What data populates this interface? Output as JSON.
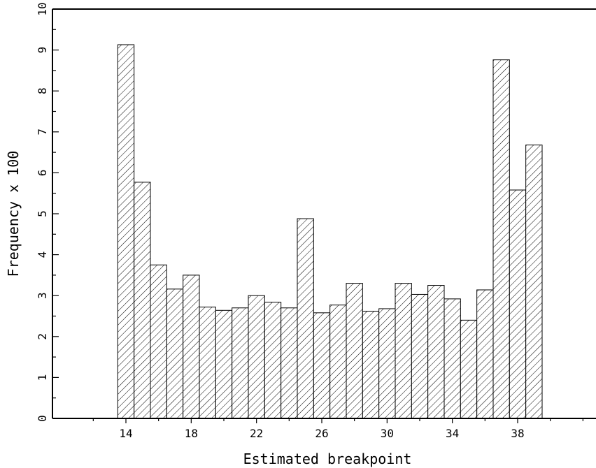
{
  "chart_data": {
    "type": "bar",
    "title": "",
    "xlabel": "Estimated breakpoint",
    "ylabel": "Frequency x 100",
    "x": [
      14,
      15,
      16,
      17,
      18,
      19,
      20,
      21,
      22,
      23,
      24,
      25,
      26,
      27,
      28,
      29,
      30,
      31,
      32,
      33,
      34,
      35,
      36,
      37,
      38,
      39
    ],
    "values": [
      9.13,
      5.77,
      3.75,
      3.16,
      3.5,
      2.72,
      2.64,
      2.7,
      3.0,
      2.84,
      2.7,
      4.88,
      2.58,
      2.77,
      3.3,
      2.62,
      2.68,
      3.3,
      3.03,
      3.25,
      2.92,
      2.4,
      3.14,
      8.76,
      5.58,
      6.68
    ],
    "xticks": [
      14,
      18,
      22,
      26,
      30,
      34,
      38
    ],
    "yticks": [
      0,
      1,
      2,
      3,
      4,
      5,
      6,
      7,
      8,
      9,
      10
    ],
    "xlim": [
      9.5,
      42.8
    ],
    "ylim": [
      0,
      10
    ],
    "grid": false,
    "legend": "none",
    "fill_pattern": "diagonal-hatch",
    "bar_edge_color": "#000000"
  }
}
